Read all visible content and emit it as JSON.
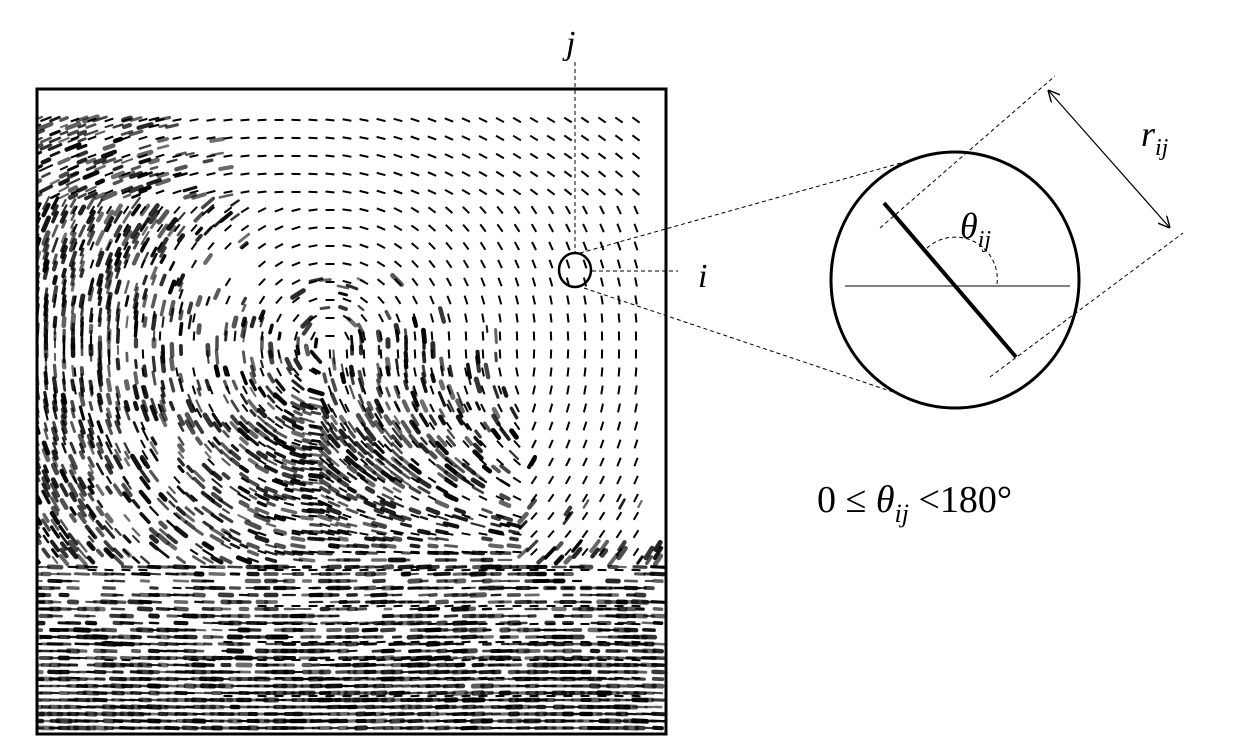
{
  "labels": {
    "column_index": "j",
    "row_index": "i",
    "distance_label": {
      "base": "r",
      "subscript": "ij"
    },
    "angle_label": {
      "base": "θ",
      "subscript": "ij"
    },
    "constraint": {
      "lower": "0 ≤ ",
      "variable": "θ",
      "subscript": "ij",
      "upper": " <180°"
    }
  },
  "figure": {
    "image_content": "fingerprint-with-orientation-field",
    "colors": {
      "stroke": "#000000",
      "background": "#ffffff"
    }
  }
}
